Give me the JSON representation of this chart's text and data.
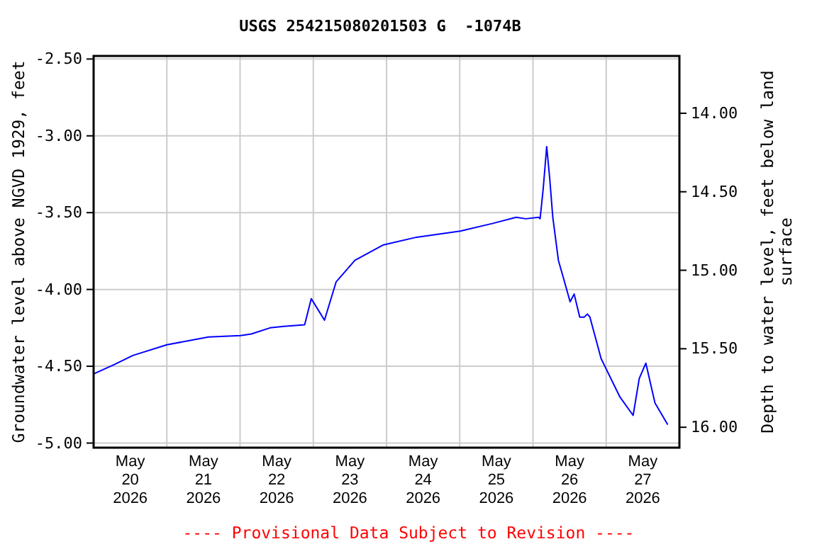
{
  "chart_data": {
    "type": "line",
    "title": "USGS 254215080201503 G  -1074B",
    "ylabel": "Groundwater level above NGVD 1929, feet",
    "y2label": "Depth to water level, feet below land surface",
    "annotations": [
      "---- Provisional Data Subject to Revision ----"
    ],
    "x": [
      "2026-05-20T00:00",
      "2026-05-20T06:40",
      "2026-05-20T12:50",
      "2026-05-21T00:00",
      "2026-05-21T13:40",
      "2026-05-22T00:10",
      "2026-05-22T03:40",
      "2026-05-22T09:50",
      "2026-05-22T14:20",
      "2026-05-22T21:10",
      "2026-05-22T23:20",
      "2026-05-23T03:40",
      "2026-05-23T07:30",
      "2026-05-23T13:40",
      "2026-05-23T23:00",
      "2026-05-24T09:50",
      "2026-05-25T00:10",
      "2026-05-25T10:50",
      "2026-05-25T18:30",
      "2026-05-25T21:40",
      "2026-05-26T01:50",
      "2026-05-26T02:20",
      "2026-05-26T03:20",
      "2026-05-26T04:30",
      "2026-05-26T05:30",
      "2026-05-26T06:30",
      "2026-05-26T08:20",
      "2026-05-26T10:20",
      "2026-05-26T12:10",
      "2026-05-26T13:30",
      "2026-05-26T15:20",
      "2026-05-26T16:50",
      "2026-05-26T17:50",
      "2026-05-26T18:40",
      "2026-05-26T22:20",
      "2026-05-27T04:30",
      "2026-05-27T08:50",
      "2026-05-27T10:50",
      "2026-05-27T13:00",
      "2026-05-27T16:00",
      "2026-05-27T20:10"
    ],
    "series": [
      {
        "color": "#0000ff",
        "values": [
          -4.55,
          -4.49,
          -4.43,
          -4.36,
          -4.31,
          -4.3,
          -4.29,
          -4.25,
          -4.24,
          -4.23,
          -4.06,
          -4.2,
          -3.95,
          -3.81,
          -3.71,
          -3.66,
          -3.62,
          -3.57,
          -3.53,
          -3.54,
          -3.53,
          -3.54,
          -3.35,
          -3.07,
          -3.28,
          -3.53,
          -3.81,
          -3.95,
          -4.08,
          -4.03,
          -4.18,
          -4.18,
          -4.16,
          -4.18,
          -4.45,
          -4.7,
          -4.82,
          -4.58,
          -4.48,
          -4.74,
          -4.88
        ]
      }
    ],
    "xlim": [
      "2026-05-20T00:00",
      "2026-05-28T00:00"
    ],
    "xticks": [
      {
        "value": "2026-05-20T12:00",
        "label": "May\n20\n2026"
      },
      {
        "value": "2026-05-21T00:00",
        "label": null
      },
      {
        "value": "2026-05-21T12:00",
        "label": "May\n21\n2026"
      },
      {
        "value": "2026-05-22T00:00",
        "label": null
      },
      {
        "value": "2026-05-22T12:00",
        "label": "May\n22\n2026"
      },
      {
        "value": "2026-05-23T00:00",
        "label": null
      },
      {
        "value": "2026-05-23T12:00",
        "label": "May\n23\n2026"
      },
      {
        "value": "2026-05-24T00:00",
        "label": null
      },
      {
        "value": "2026-05-24T12:00",
        "label": "May\n24\n2026"
      },
      {
        "value": "2026-05-25T00:00",
        "label": null
      },
      {
        "value": "2026-05-25T12:00",
        "label": "May\n25\n2026"
      },
      {
        "value": "2026-05-26T00:00",
        "label": null
      },
      {
        "value": "2026-05-26T12:00",
        "label": "May\n26\n2026"
      },
      {
        "value": "2026-05-27T00:00",
        "label": null
      },
      {
        "value": "2026-05-27T12:00",
        "label": "May\n27\n2026"
      }
    ],
    "ylim": [
      -5.03,
      -2.48
    ],
    "yticks": [
      {
        "value": -2.5,
        "label": "-2.50"
      },
      {
        "value": -3,
        "label": "-3.00"
      },
      {
        "value": -3.5,
        "label": "-3.50"
      },
      {
        "value": -4,
        "label": "-4.00"
      },
      {
        "value": -4.5,
        "label": "-4.50"
      },
      {
        "value": -5,
        "label": "-5.00"
      }
    ],
    "y2lim": [
      16.13,
      13.635
    ],
    "y2ticks": [
      {
        "value": 14,
        "label": "14.00"
      },
      {
        "value": 14.5,
        "label": "14.50"
      },
      {
        "value": 15,
        "label": "15.00"
      },
      {
        "value": 15.5,
        "label": "15.50"
      },
      {
        "value": 16,
        "label": "16.00"
      }
    ],
    "grid": true
  }
}
